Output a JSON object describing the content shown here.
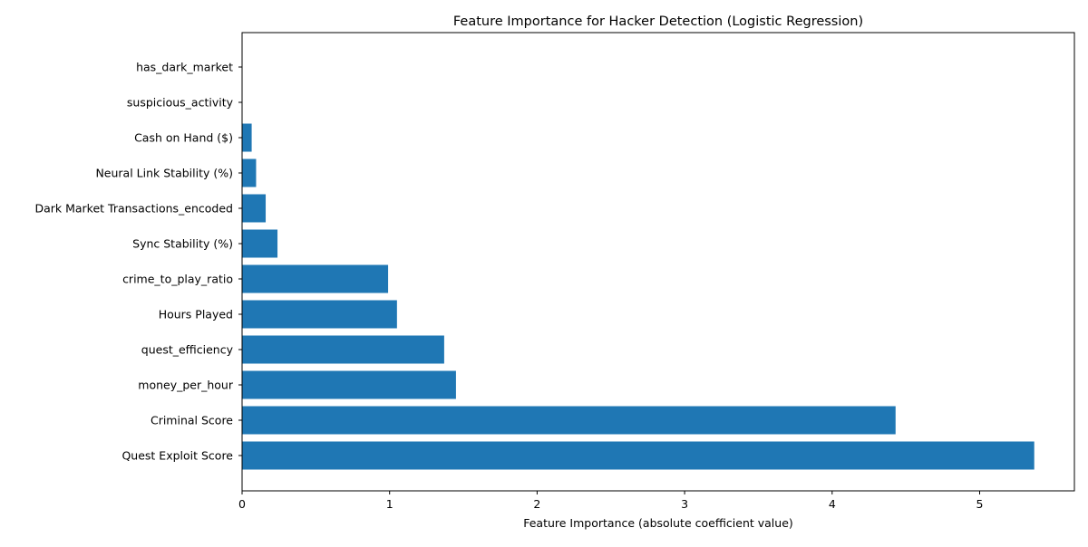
{
  "chart_data": {
    "type": "bar",
    "orientation": "horizontal",
    "title": "Feature Importance for Hacker Detection (Logistic Regression)",
    "xlabel": "Feature Importance (absolute coefficient value)",
    "ylabel": "",
    "xlim": [
      0,
      5.64
    ],
    "xticks": [
      "0",
      "1",
      "2",
      "3",
      "4",
      "5"
    ],
    "grid": false,
    "bar_color": "#1f77b4",
    "categories": [
      "Quest Exploit Score",
      "Criminal Score",
      "money_per_hour",
      "quest_efficiency",
      "Hours Played",
      "crime_to_play_ratio",
      "Sync Stability (%)",
      "Dark Market Transactions_encoded",
      "Neural Link Stability (%)",
      "Cash on Hand ($)",
      "suspicious_activity",
      "has_dark_market"
    ],
    "values": [
      5.37,
      4.43,
      1.45,
      1.37,
      1.05,
      0.99,
      0.24,
      0.16,
      0.095,
      0.065,
      0.0,
      0.0
    ]
  }
}
